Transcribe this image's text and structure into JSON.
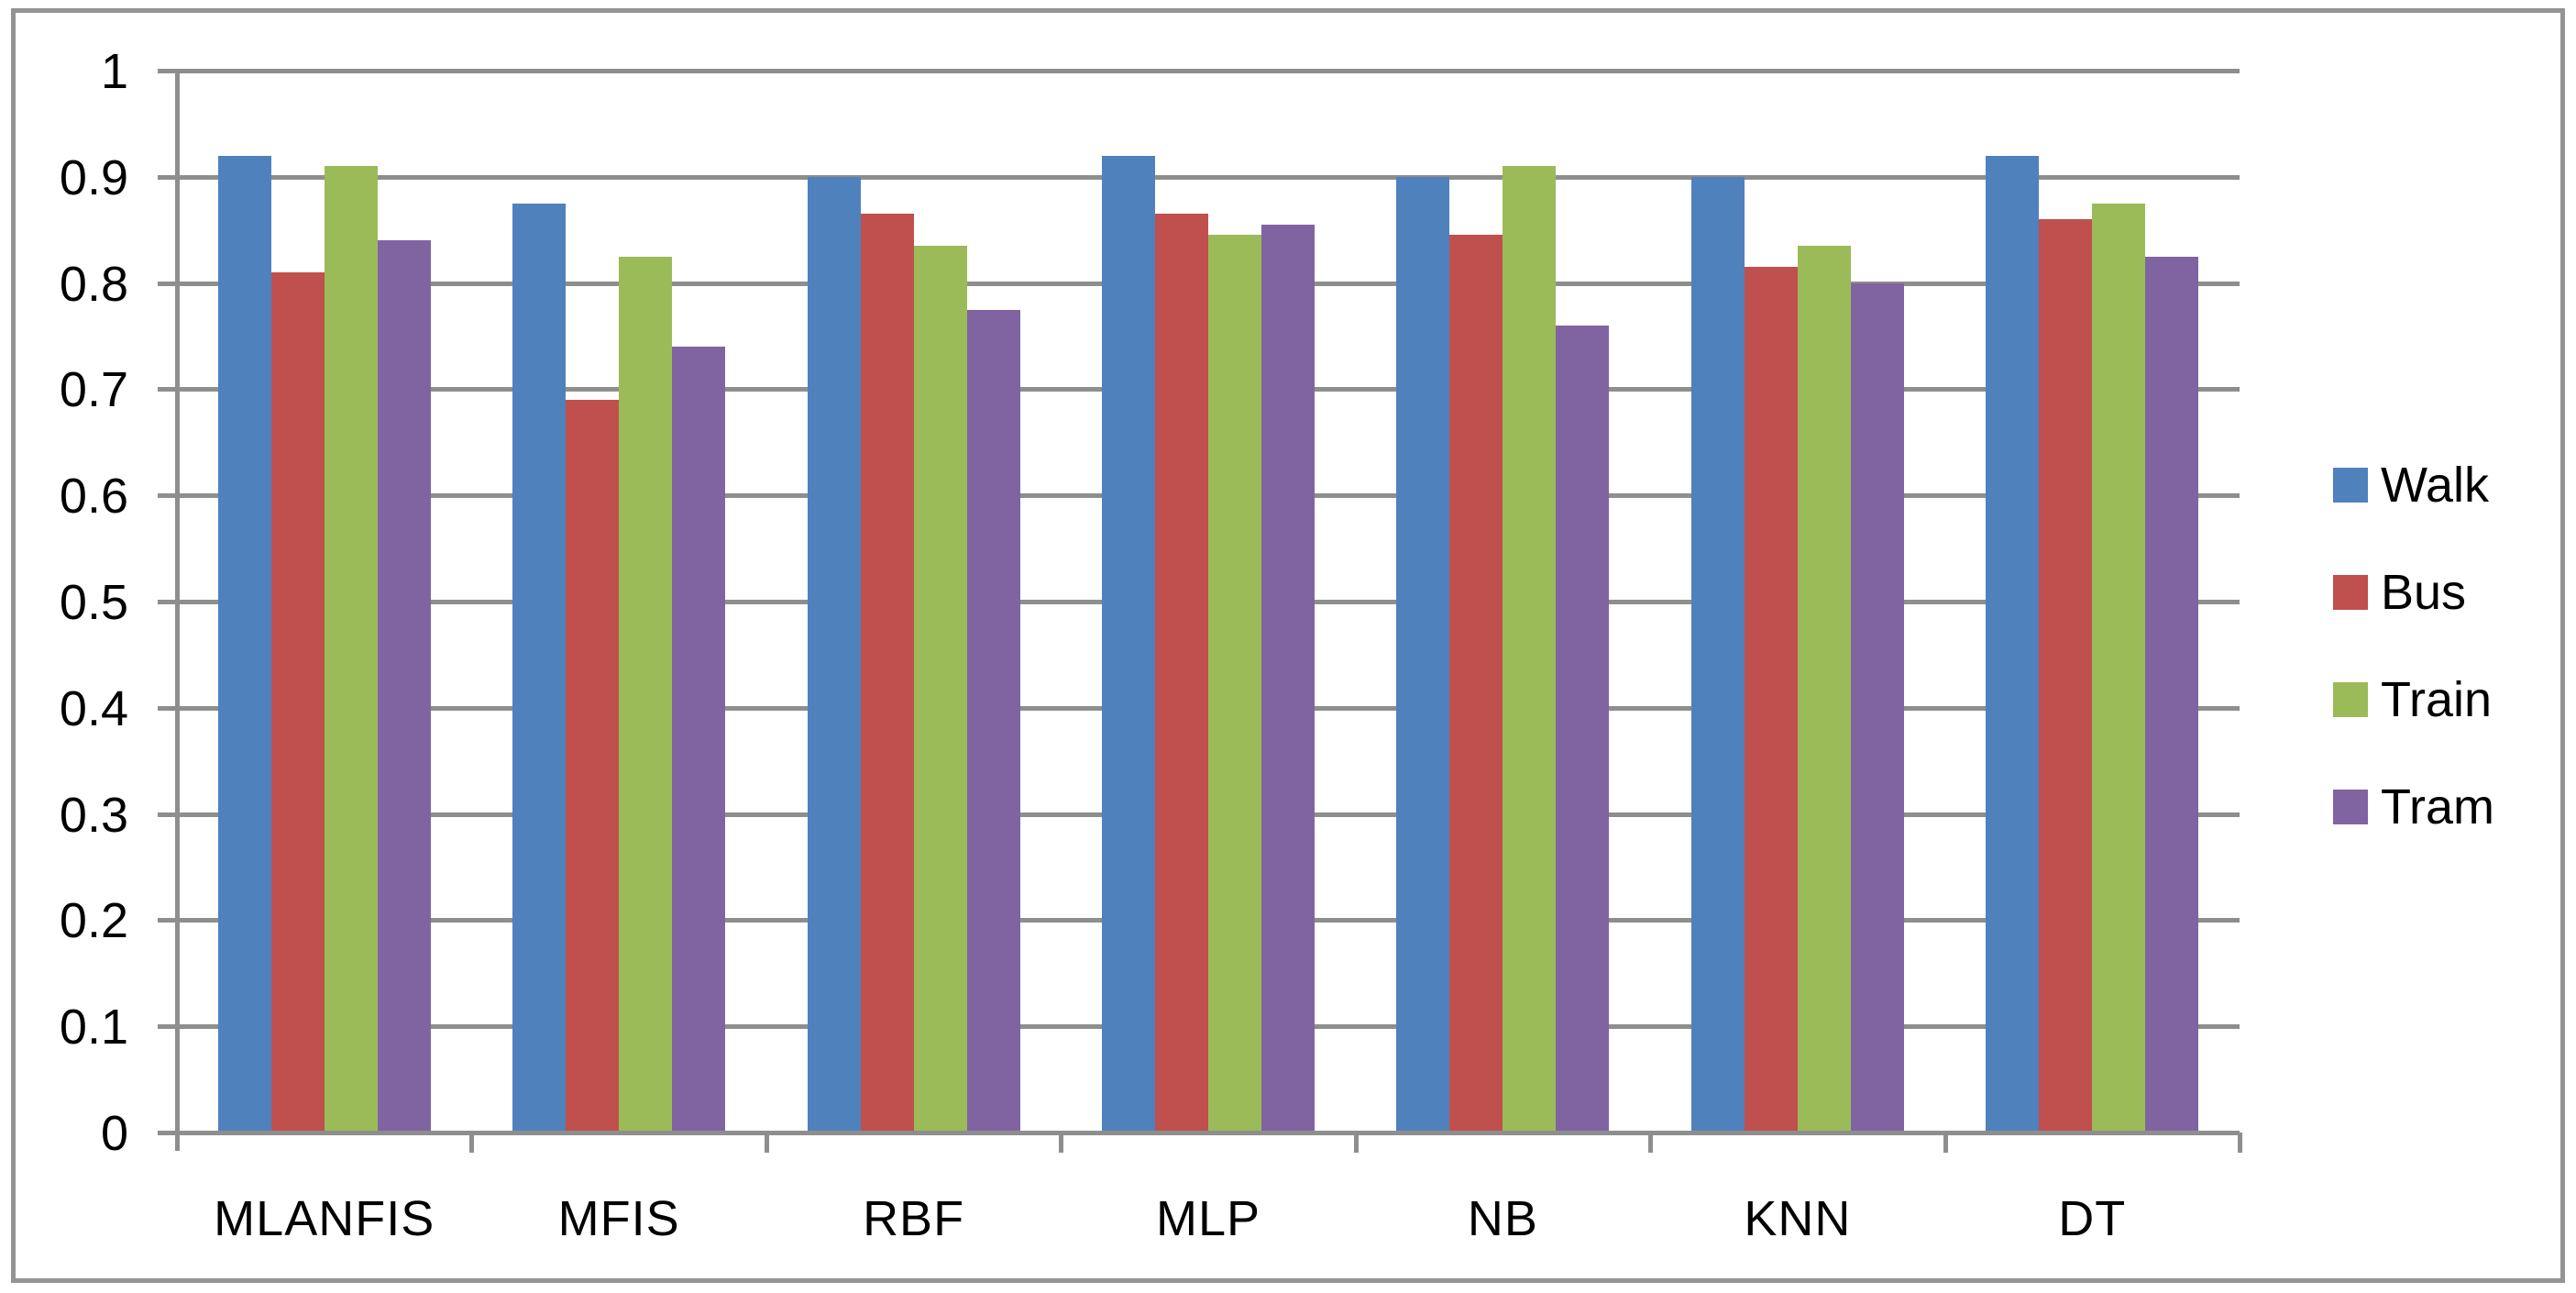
{
  "chart_data": {
    "type": "bar",
    "title": "",
    "xlabel": "",
    "ylabel": "",
    "categories": [
      "MLANFIS",
      "MFIS",
      "RBF",
      "MLP",
      "NB",
      "KNN",
      "DT"
    ],
    "series": [
      {
        "name": "Walk",
        "color": "#4F81BD",
        "values": [
          0.92,
          0.875,
          0.9,
          0.92,
          0.9,
          0.9,
          0.92
        ]
      },
      {
        "name": "Bus",
        "color": "#C0504D",
        "values": [
          0.81,
          0.69,
          0.865,
          0.865,
          0.845,
          0.815,
          0.86
        ]
      },
      {
        "name": "Train",
        "color": "#9BBB59",
        "values": [
          0.91,
          0.825,
          0.835,
          0.845,
          0.91,
          0.835,
          0.875
        ]
      },
      {
        "name": "Tram",
        "color": "#8064A2",
        "values": [
          0.84,
          0.74,
          0.775,
          0.855,
          0.76,
          0.8,
          0.825
        ]
      }
    ],
    "ylim": [
      0,
      1
    ],
    "y_ticks": [
      0,
      0.1,
      0.2,
      0.3,
      0.4,
      0.5,
      0.6,
      0.7,
      0.8,
      0.9,
      1
    ],
    "y_tick_labels": [
      "0",
      "0.1",
      "0.2",
      "0.3",
      "0.4",
      "0.5",
      "0.6",
      "0.7",
      "0.8",
      "0.9",
      "1"
    ],
    "grid": "horizontal",
    "legend_position": "right",
    "gridline_color": "#8e8e8e",
    "axis_text_color": "#000000",
    "frame_color": "#949494",
    "background_color": "#ffffff"
  }
}
